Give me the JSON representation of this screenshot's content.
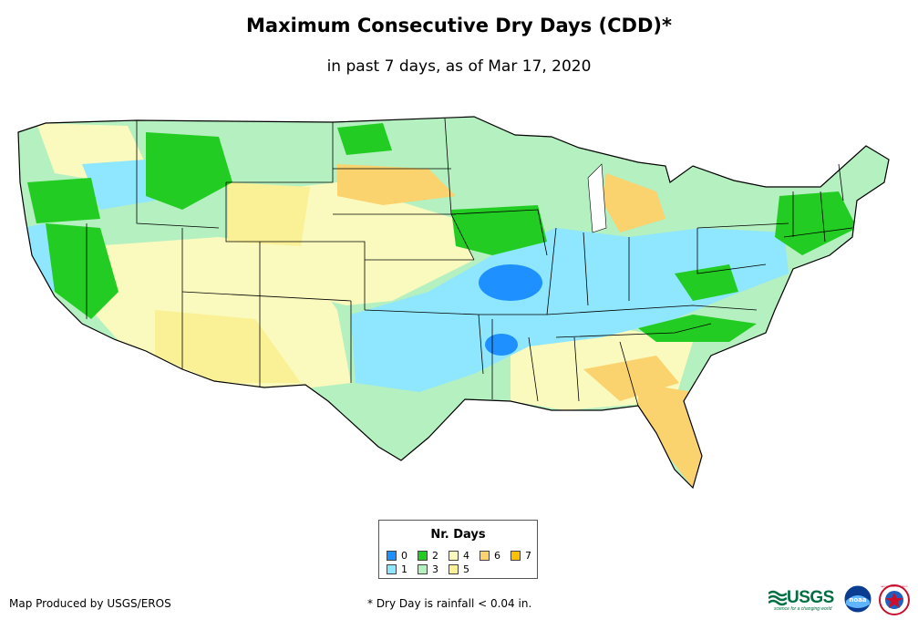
{
  "title": "Maximum Consecutive Dry Days (CDD)*",
  "subtitle": "in past 7 days, as of Mar 17, 2020",
  "legend": {
    "title": "Nr. Days",
    "items": [
      {
        "label": "0",
        "color": "#1e90ff"
      },
      {
        "label": "1",
        "color": "#8ee6ff"
      },
      {
        "label": "2",
        "color": "#22cc22"
      },
      {
        "label": "3",
        "color": "#b4f0c0"
      },
      {
        "label": "4",
        "color": "#fafabe"
      },
      {
        "label": "5",
        "color": "#faf096"
      },
      {
        "label": "6",
        "color": "#fad26e"
      },
      {
        "label": "7",
        "color": "#ffc000"
      }
    ]
  },
  "credit": "Map Produced by USGS/EROS",
  "footnote": "* Dry Day is rainfall < 0.04 in.",
  "logos": {
    "usgs": "USGS",
    "usgs_tagline": "science for a changing world",
    "noaa": "noaa",
    "nws": "NATIONAL WEATHER SERVICE"
  }
}
